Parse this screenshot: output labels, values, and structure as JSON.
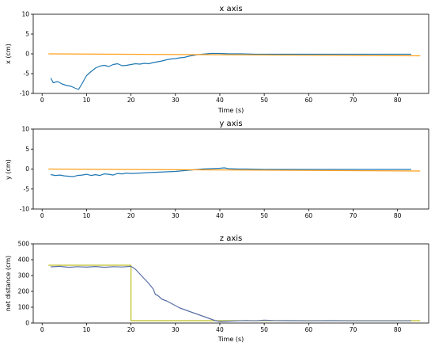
{
  "colors": {
    "blue": "#1f77b4",
    "orange": "#ff9f1a",
    "olive": "#bcbd22",
    "slate": "#5a6fa8"
  },
  "chart_data": [
    {
      "type": "line",
      "title": "x axis",
      "xlabel": "Time (s)",
      "ylabel": "x (cm)",
      "xlim": [
        -2,
        87
      ],
      "ylim": [
        -10,
        10
      ],
      "xticks": [
        0,
        10,
        20,
        30,
        40,
        50,
        60,
        70,
        80
      ],
      "yticks": [
        -10,
        -5,
        0,
        5,
        10
      ],
      "grid": false,
      "series": [
        {
          "color": "#1f77b4",
          "x": [
            2.0,
            2.5,
            3.5,
            4.5,
            5.5,
            6.5,
            7.5,
            8.2,
            9.0,
            10.0,
            11.0,
            12.0,
            13.0,
            14.0,
            15.0,
            16.0,
            17.0,
            18.0,
            19.0,
            20.0,
            21.0,
            22.0,
            23.0,
            24.0,
            25.0,
            26.0,
            27.0,
            28.0,
            29.0,
            30.0,
            31.0,
            32.0,
            33.0,
            34.0,
            35.0,
            36.0,
            37.0,
            38.0,
            40.0,
            42.0,
            45.0,
            48.0,
            50.0,
            55.0,
            60.0,
            65.0,
            70.0,
            75.0,
            80.0,
            83.0
          ],
          "y": [
            -6.2,
            -7.3,
            -7.0,
            -7.6,
            -8.0,
            -8.2,
            -8.7,
            -9.0,
            -7.5,
            -5.5,
            -4.5,
            -3.6,
            -3.1,
            -2.9,
            -3.2,
            -2.7,
            -2.5,
            -3.0,
            -2.9,
            -2.7,
            -2.5,
            -2.6,
            -2.4,
            -2.5,
            -2.2,
            -2.0,
            -1.8,
            -1.5,
            -1.3,
            -1.2,
            -1.0,
            -0.9,
            -0.6,
            -0.4,
            -0.2,
            -0.1,
            0.0,
            0.1,
            0.1,
            0.0,
            0.0,
            -0.1,
            -0.1,
            -0.1,
            -0.1,
            -0.1,
            -0.1,
            -0.1,
            -0.1,
            -0.1
          ]
        },
        {
          "color": "#ff9f1a",
          "x": [
            1.5,
            85.0
          ],
          "y": [
            0.0,
            -0.5
          ]
        }
      ]
    },
    {
      "type": "line",
      "title": "y axis",
      "xlabel": "",
      "ylabel": "y (cm)",
      "xlim": [
        -2,
        87
      ],
      "ylim": [
        -10,
        10
      ],
      "xticks": [
        0,
        10,
        20,
        30,
        40,
        50,
        60,
        70,
        80
      ],
      "yticks": [
        -10,
        -5,
        0,
        5,
        10
      ],
      "grid": false,
      "series": [
        {
          "color": "#1f77b4",
          "x": [
            2.0,
            3.0,
            4.0,
            5.0,
            6.0,
            7.0,
            8.0,
            9.0,
            10.0,
            11.0,
            12.0,
            13.0,
            14.0,
            15.0,
            16.0,
            17.0,
            18.0,
            19.0,
            20.0,
            22.0,
            24.0,
            26.0,
            28.0,
            30.0,
            32.0,
            34.0,
            36.0,
            38.0,
            40.0,
            41.0,
            42.0,
            44.0,
            46.0,
            50.0,
            55.0,
            60.0,
            65.0,
            70.0,
            75.0,
            80.0,
            83.0
          ],
          "y": [
            -1.4,
            -1.6,
            -1.5,
            -1.7,
            -1.8,
            -1.9,
            -1.6,
            -1.5,
            -1.3,
            -1.6,
            -1.4,
            -1.6,
            -1.2,
            -1.3,
            -1.5,
            -1.1,
            -1.2,
            -1.0,
            -1.1,
            -1.0,
            -0.9,
            -0.8,
            -0.7,
            -0.6,
            -0.4,
            -0.2,
            0.0,
            0.1,
            0.2,
            0.3,
            0.1,
            0.0,
            0.0,
            -0.1,
            -0.1,
            -0.1,
            -0.1,
            -0.1,
            -0.1,
            -0.1,
            -0.1
          ]
        },
        {
          "color": "#ff9f1a",
          "x": [
            1.5,
            85.0
          ],
          "y": [
            0.0,
            -0.5
          ]
        }
      ]
    },
    {
      "type": "line",
      "title": "z axis",
      "xlabel": "Time (s)",
      "ylabel": "net distance (cm)",
      "xlim": [
        -2,
        87
      ],
      "ylim": [
        0,
        500
      ],
      "xticks": [
        0,
        10,
        20,
        30,
        40,
        50,
        60,
        70,
        80
      ],
      "yticks": [
        0,
        100,
        200,
        300,
        400,
        500
      ],
      "grid": false,
      "series": [
        {
          "color": "#bcbd22",
          "x": [
            1.5,
            20.0,
            20.0,
            85.0
          ],
          "y": [
            365,
            365,
            15,
            15
          ]
        },
        {
          "color": "#5a6fa8",
          "x": [
            2.0,
            4.0,
            6.0,
            8.0,
            10.0,
            12.0,
            14.0,
            16.0,
            18.0,
            20.0,
            21.0,
            22.0,
            23.0,
            24.0,
            25.0,
            25.5,
            26.0,
            27.0,
            28.0,
            29.0,
            30.0,
            31.0,
            32.0,
            33.0,
            34.0,
            35.0,
            36.0,
            37.0,
            38.0,
            39.0,
            40.0,
            42.0,
            44.0,
            46.0,
            48.0,
            50.0,
            52.0,
            55.0,
            60.0,
            65.0,
            70.0,
            75.0,
            80.0,
            83.0
          ],
          "y": [
            355,
            358,
            352,
            356,
            353,
            357,
            352,
            356,
            354,
            358,
            340,
            310,
            280,
            250,
            215,
            180,
            175,
            150,
            140,
            125,
            110,
            95,
            85,
            75,
            65,
            55,
            45,
            35,
            25,
            15,
            10,
            12,
            14,
            16,
            14,
            18,
            16,
            15,
            14,
            15,
            14,
            14,
            14,
            14
          ]
        }
      ]
    }
  ]
}
